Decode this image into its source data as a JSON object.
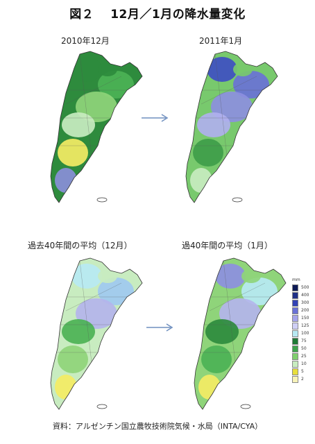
{
  "title": "図２　 12月／1月の降水量変化",
  "maps": [
    {
      "caption": "2010年12月",
      "palette": [
        "#2e8b3d",
        "#4cb255",
        "#8fd47a",
        "#c8ecc0",
        "#f4eb64",
        "#2e8b3d",
        "#8a8ed8"
      ]
    },
    {
      "caption": "2011年1月",
      "palette": [
        "#3f4fc2",
        "#6a72d6",
        "#8d8fe0",
        "#b0b0ee",
        "#3f9d4a",
        "#78c96d",
        "#c8ecc0"
      ]
    },
    {
      "caption": "過去40年間の平均（12月）",
      "palette": [
        "#b7e9f3",
        "#9fc9f0",
        "#b4b4ec",
        "#4cb255",
        "#8fd47a",
        "#c8ecc0",
        "#f4eb64"
      ]
    },
    {
      "caption": "過40年間の平均（1月）",
      "palette": [
        "#8d8fe0",
        "#b7e9f3",
        "#b4b4ec",
        "#2e8b3d",
        "#4cb255",
        "#8fd47a",
        "#f4eb64"
      ]
    }
  ],
  "legend": {
    "unit": "mm",
    "items": [
      {
        "label": "500",
        "color": "#0d1a55"
      },
      {
        "label": "400",
        "color": "#1f2f86"
      },
      {
        "label": "300",
        "color": "#3343b5"
      },
      {
        "label": "200",
        "color": "#6a72d6"
      },
      {
        "label": "150",
        "color": "#a5a4ea"
      },
      {
        "label": "125",
        "color": "#cfcff5"
      },
      {
        "label": "100",
        "color": "#b7e9f3"
      },
      {
        "label": "75",
        "color": "#1f7a36"
      },
      {
        "label": "50",
        "color": "#3ea34c"
      },
      {
        "label": "25",
        "color": "#7fcf6e"
      },
      {
        "label": "10",
        "color": "#c8ecc0"
      },
      {
        "label": "5",
        "color": "#e8de3c"
      },
      {
        "label": "2",
        "color": "#f8f3b8"
      }
    ]
  },
  "source": "資料：アルゼンチン国立農牧技術院気候・水局（INTA/CYA）"
}
